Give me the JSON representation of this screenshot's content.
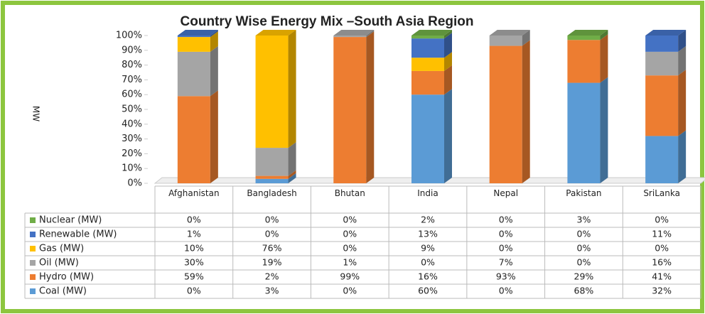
{
  "chart_data": {
    "type": "stacked-bar-3d",
    "title": "Country Wise Energy Mix –South Asia Region",
    "ylabel": "MW",
    "categories": [
      "Afghanistan",
      "Bangladesh",
      "Bhutan",
      "India",
      "Nepal",
      "Pakistan",
      "SriLanka"
    ],
    "ylim": [
      0,
      100
    ],
    "yticks": [
      {
        "value": 0,
        "label": "0%"
      },
      {
        "value": 10,
        "label": "10%"
      },
      {
        "value": 20,
        "label": "20%"
      },
      {
        "value": 30,
        "label": "30%"
      },
      {
        "value": 40,
        "label": "40%"
      },
      {
        "value": 50,
        "label": "50%"
      },
      {
        "value": 60,
        "label": "60%"
      },
      {
        "value": 70,
        "label": "70%"
      },
      {
        "value": 80,
        "label": "80%"
      },
      {
        "value": 90,
        "label": "90%"
      },
      {
        "value": 100,
        "label": "100%"
      }
    ],
    "grid": false,
    "series": [
      {
        "name": "Coal (MW)",
        "color": "#5b9bd5",
        "values": [
          0,
          3,
          0,
          60,
          0,
          68,
          32
        ],
        "value_labels": [
          "0%",
          "3%",
          "0%",
          "60%",
          "0%",
          "68%",
          "32%"
        ]
      },
      {
        "name": "Hydro (MW)",
        "color": "#ed7d31",
        "values": [
          59,
          2,
          99,
          16,
          93,
          29,
          41
        ],
        "value_labels": [
          "59%",
          "2%",
          "99%",
          "16%",
          "93%",
          "29%",
          "41%"
        ]
      },
      {
        "name": "Oil (MW)",
        "color": "#a5a5a5",
        "values": [
          30,
          19,
          1,
          0,
          7,
          0,
          16
        ],
        "value_labels": [
          "30%",
          "19%",
          "1%",
          "0%",
          "7%",
          "0%",
          "16%"
        ]
      },
      {
        "name": "Gas (MW)",
        "color": "#ffc000",
        "values": [
          10,
          76,
          0,
          9,
          0,
          0,
          0
        ],
        "value_labels": [
          "10%",
          "76%",
          "0%",
          "9%",
          "0%",
          "0%",
          "0%"
        ]
      },
      {
        "name": "Renewable (MW)",
        "color": "#4472c4",
        "values": [
          1,
          0,
          0,
          13,
          0,
          0,
          11
        ],
        "value_labels": [
          "1%",
          "0%",
          "0%",
          "13%",
          "0%",
          "0%",
          "11%"
        ]
      },
      {
        "name": "Nuclear (MW)",
        "color": "#70ad47",
        "values": [
          0,
          0,
          0,
          2,
          0,
          3,
          0
        ],
        "value_labels": [
          "0%",
          "0%",
          "0%",
          "2%",
          "0%",
          "3%",
          "0%"
        ]
      }
    ]
  }
}
